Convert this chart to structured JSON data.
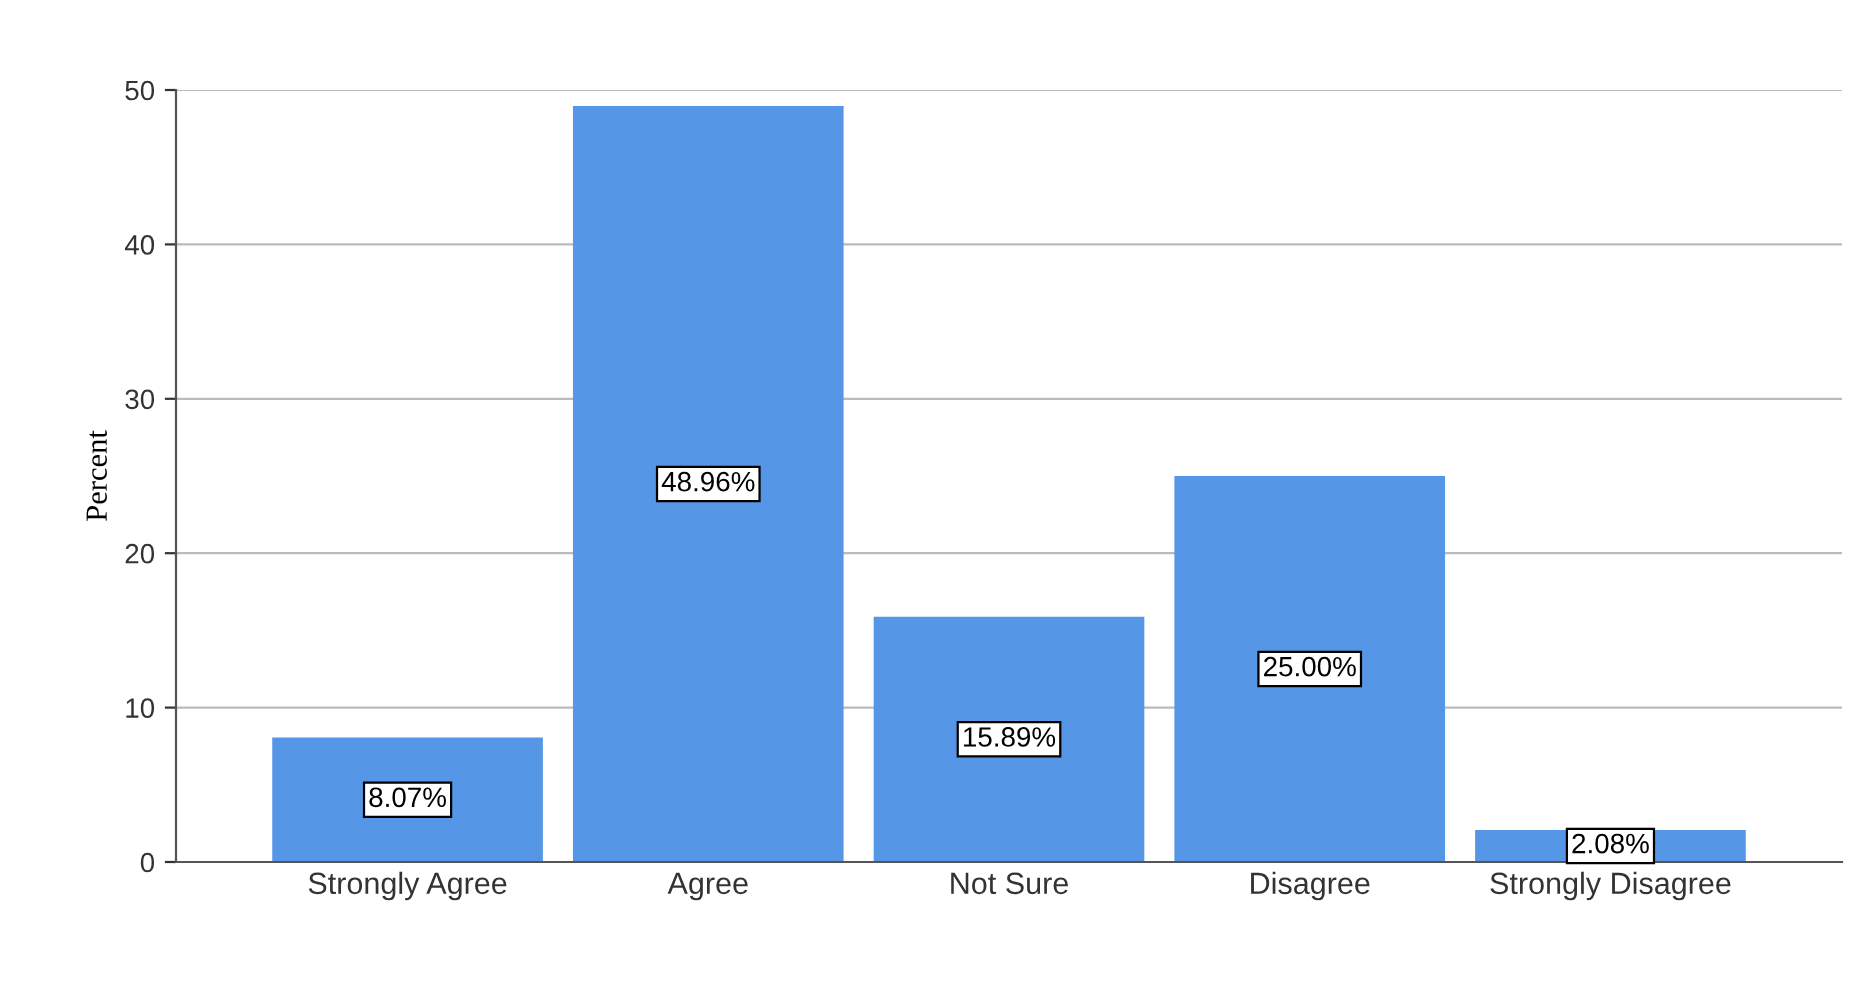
{
  "chart_data": {
    "type": "bar",
    "ylabel": "Percent",
    "categories": [
      "Strongly Agree",
      "Agree",
      "Not Sure",
      "Disagree",
      "Strongly Disagree"
    ],
    "values": [
      8.07,
      48.96,
      15.89,
      25.0,
      2.08
    ],
    "value_labels": [
      "8.07%",
      "48.96%",
      "15.89%",
      "25.00%",
      "2.08%"
    ],
    "color": "#5596e6",
    "ylim": [
      0,
      50
    ],
    "yticks": [
      0,
      10,
      20,
      30,
      40,
      50
    ],
    "grid": "y"
  }
}
